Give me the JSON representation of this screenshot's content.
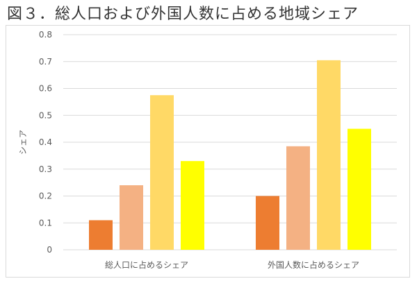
{
  "figure": {
    "title": "図３．総人口および外国人数に占める地域シェア"
  },
  "chart_data": {
    "type": "bar",
    "title": "",
    "xlabel": "",
    "ylabel": "シェア",
    "ylim": [
      0,
      0.8
    ],
    "yticks": [
      "0",
      "0.1",
      "0.2",
      "0.3",
      "0.4",
      "0.5",
      "0.6",
      "0.7",
      "0.8"
    ],
    "categories": [
      "総人口に占めるシェア",
      "外国人数に占めるシェア"
    ],
    "grid": true,
    "legend": "none",
    "series": [
      {
        "color": "#ED7D31",
        "values": [
          0.11,
          0.2
        ]
      },
      {
        "color": "#F4B183",
        "values": [
          0.24,
          0.385
        ]
      },
      {
        "color": "#FFD966",
        "values": [
          0.575,
          0.705
        ]
      },
      {
        "color": "#FFFF00",
        "values": [
          0.33,
          0.45
        ]
      }
    ]
  }
}
